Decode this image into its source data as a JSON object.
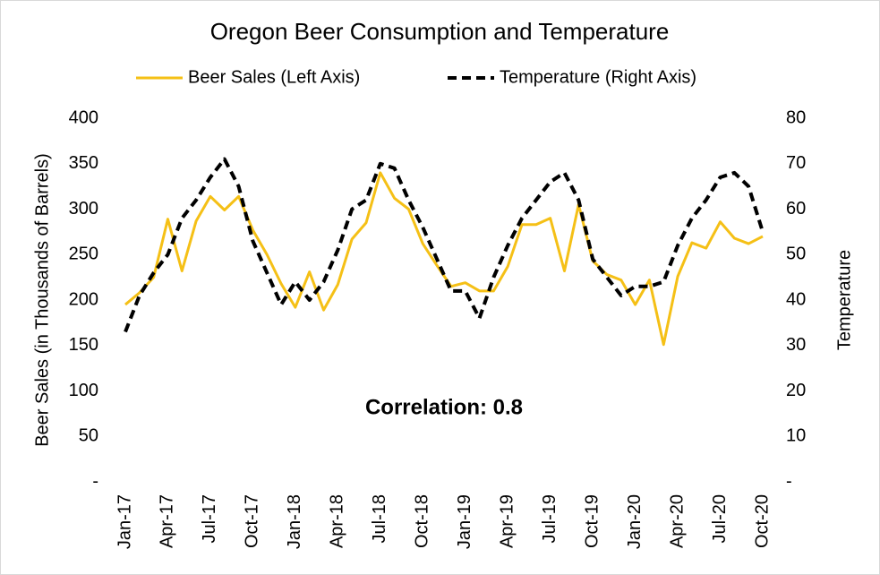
{
  "chart_data": {
    "type": "line",
    "title": "Oregon Beer Consumption and Temperature",
    "y_label": "Beer Sales (in Thousands of Barrels)",
    "y2_label": "Temperature",
    "annotation": "Correlation: 0.8",
    "categories": [
      "Jan-17",
      null,
      null,
      "Apr-17",
      null,
      null,
      "Jul-17",
      null,
      null,
      "Oct-17",
      null,
      null,
      "Jan-18",
      null,
      null,
      "Apr-18",
      null,
      null,
      "Jul-18",
      null,
      null,
      "Oct-18",
      null,
      null,
      "Jan-19",
      null,
      null,
      "Apr-19",
      null,
      null,
      "Jul-19",
      null,
      null,
      "Oct-19",
      null,
      null,
      "Jan-20",
      null,
      null,
      "Apr-20",
      null,
      null,
      "Jul-20",
      null,
      null,
      "Oct-20"
    ],
    "series": [
      {
        "name": "Beer Sales (Left Axis)",
        "color": "#f5c016",
        "dash": false,
        "axis": "y",
        "values": [
          195,
          208,
          225,
          289,
          232,
          287,
          314,
          299,
          314,
          277,
          250,
          218,
          192,
          231,
          189,
          217,
          267,
          285,
          340,
          312,
          300,
          262,
          238,
          215,
          219,
          210,
          210,
          237,
          283,
          283,
          290,
          232,
          305,
          243,
          228,
          222,
          195,
          222,
          151,
          226,
          263,
          257,
          286,
          268,
          262,
          270
        ]
      },
      {
        "name": "Temperature (Right Axis)",
        "color": "#000000",
        "dash": true,
        "axis": "y2",
        "values": [
          33,
          41,
          46,
          50,
          58,
          62,
          67,
          71,
          65,
          53,
          46,
          39,
          44,
          40,
          44,
          51,
          60,
          62,
          70,
          69,
          62,
          56,
          49,
          42,
          42,
          36,
          45,
          52,
          58,
          62,
          66,
          68,
          62,
          49,
          45,
          41,
          43,
          43,
          44,
          52,
          58,
          62,
          67,
          68,
          65,
          55
        ]
      }
    ],
    "ylim": [
      0,
      400
    ],
    "yticks": [
      {
        "value": 0,
        "label": "-"
      },
      50,
      100,
      150,
      200,
      250,
      300,
      350,
      400
    ],
    "y2lim": [
      0,
      80
    ],
    "y2ticks": [
      {
        "value": 0,
        "label": "-"
      },
      10,
      20,
      30,
      40,
      50,
      60,
      70,
      80
    ],
    "legend": "top"
  }
}
